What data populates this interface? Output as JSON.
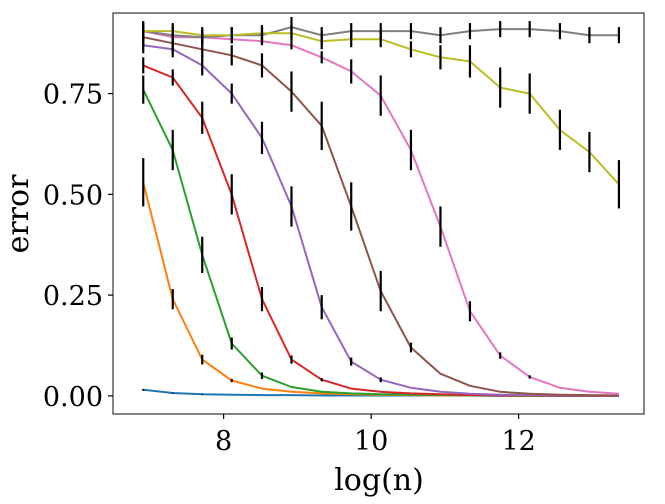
{
  "chart_data": {
    "type": "line",
    "title": "",
    "xlabel": "log(n)",
    "ylabel": "error",
    "xlim": [
      6.5,
      13.7
    ],
    "ylim": [
      -0.045,
      0.95
    ],
    "x_ticks": [
      8,
      10,
      12
    ],
    "x_tick_labels": [
      "8",
      "10",
      "12"
    ],
    "y_ticks": [
      0.0,
      0.25,
      0.5,
      0.75
    ],
    "y_tick_labels": [
      "0.00",
      "0.25",
      "0.50",
      "0.75"
    ],
    "grid": false,
    "x": [
      6.91,
      7.31,
      7.71,
      8.11,
      8.52,
      8.92,
      9.33,
      9.73,
      10.13,
      10.54,
      10.94,
      11.34,
      11.75,
      12.15,
      12.56,
      12.96,
      13.36
    ],
    "series": [
      {
        "name": "blue",
        "color": "#1f77b4",
        "values": [
          0.015,
          0.007,
          0.004,
          0.003,
          0.002,
          0.002,
          0.001,
          0.001,
          0.001,
          0.001,
          0.001,
          0.001,
          0.0,
          0.0,
          0.0,
          0.0,
          0.0
        ],
        "errors": [
          0.002,
          0.001,
          0.001,
          0.0,
          0.0,
          0.0,
          0.0,
          0.0,
          0.0,
          0.0,
          0.0,
          0.0,
          0.0,
          0.0,
          0.0,
          0.0,
          0.0
        ]
      },
      {
        "name": "orange",
        "color": "#ff7f0e",
        "values": [
          0.53,
          0.24,
          0.09,
          0.038,
          0.018,
          0.01,
          0.006,
          0.004,
          0.003,
          0.002,
          0.001,
          0.001,
          0.001,
          0.0,
          0.0,
          0.0,
          0.0
        ],
        "errors": [
          0.06,
          0.025,
          0.012,
          0.004,
          0.0,
          0.0,
          0.0,
          0.0,
          0.0,
          0.0,
          0.0,
          0.0,
          0.0,
          0.0,
          0.0,
          0.0,
          0.0
        ]
      },
      {
        "name": "green",
        "color": "#2ca02c",
        "values": [
          0.76,
          0.61,
          0.35,
          0.13,
          0.05,
          0.022,
          0.01,
          0.006,
          0.004,
          0.003,
          0.002,
          0.001,
          0.001,
          0.0,
          0.0,
          0.0,
          0.0
        ],
        "errors": [
          0.035,
          0.05,
          0.045,
          0.015,
          0.008,
          0.0,
          0.0,
          0.0,
          0.0,
          0.0,
          0.0,
          0.0,
          0.0,
          0.0,
          0.0,
          0.0,
          0.0
        ]
      },
      {
        "name": "red",
        "color": "#d62728",
        "values": [
          0.82,
          0.79,
          0.69,
          0.5,
          0.24,
          0.09,
          0.04,
          0.018,
          0.01,
          0.006,
          0.004,
          0.002,
          0.001,
          0.001,
          0.0,
          0.0,
          0.0
        ],
        "errors": [
          0.02,
          0.02,
          0.04,
          0.05,
          0.03,
          0.01,
          0.004,
          0.0,
          0.0,
          0.0,
          0.0,
          0.0,
          0.0,
          0.0,
          0.0,
          0.0,
          0.0
        ]
      },
      {
        "name": "purple",
        "color": "#9467bd",
        "values": [
          0.87,
          0.86,
          0.82,
          0.75,
          0.64,
          0.47,
          0.22,
          0.085,
          0.04,
          0.02,
          0.01,
          0.005,
          0.003,
          0.002,
          0.001,
          0.001,
          0.0
        ],
        "errors": [
          0.02,
          0.02,
          0.025,
          0.025,
          0.04,
          0.05,
          0.03,
          0.01,
          0.006,
          0.0,
          0.0,
          0.0,
          0.0,
          0.0,
          0.0,
          0.0,
          0.0
        ]
      },
      {
        "name": "brown",
        "color": "#8c564b",
        "values": [
          0.89,
          0.875,
          0.86,
          0.845,
          0.82,
          0.755,
          0.67,
          0.47,
          0.26,
          0.12,
          0.055,
          0.025,
          0.01,
          0.005,
          0.003,
          0.002,
          0.001
        ],
        "errors": [
          0.02,
          0.02,
          0.02,
          0.025,
          0.03,
          0.05,
          0.06,
          0.06,
          0.05,
          0.012,
          0.0,
          0.0,
          0.0,
          0.0,
          0.0,
          0.0,
          0.0
        ]
      },
      {
        "name": "pink",
        "color": "#e377c2",
        "values": [
          0.905,
          0.89,
          0.89,
          0.885,
          0.88,
          0.87,
          0.84,
          0.805,
          0.745,
          0.61,
          0.42,
          0.21,
          0.1,
          0.047,
          0.02,
          0.01,
          0.005
        ],
        "errors": [
          0.01,
          0.01,
          0.01,
          0.01,
          0.01,
          0.01,
          0.015,
          0.03,
          0.05,
          0.05,
          0.05,
          0.025,
          0.008,
          0.004,
          0.0,
          0.0,
          0.0
        ]
      },
      {
        "name": "gray",
        "color": "#7f7f7f",
        "values": [
          0.905,
          0.895,
          0.89,
          0.895,
          0.895,
          0.915,
          0.895,
          0.905,
          0.905,
          0.905,
          0.895,
          0.905,
          0.91,
          0.91,
          0.905,
          0.895,
          0.895
        ],
        "errors": [
          0.025,
          0.02,
          0.02,
          0.02,
          0.02,
          0.025,
          0.02,
          0.02,
          0.02,
          0.02,
          0.02,
          0.02,
          0.02,
          0.02,
          0.02,
          0.02,
          0.02
        ]
      },
      {
        "name": "olive",
        "color": "#bcbd22",
        "values": [
          0.905,
          0.905,
          0.895,
          0.895,
          0.9,
          0.9,
          0.88,
          0.885,
          0.885,
          0.86,
          0.84,
          0.83,
          0.765,
          0.75,
          0.66,
          0.605,
          0.525
        ],
        "errors": [
          0.02,
          0.02,
          0.02,
          0.02,
          0.02,
          0.02,
          0.02,
          0.02,
          0.02,
          0.02,
          0.03,
          0.04,
          0.05,
          0.05,
          0.05,
          0.05,
          0.06
        ]
      }
    ]
  }
}
